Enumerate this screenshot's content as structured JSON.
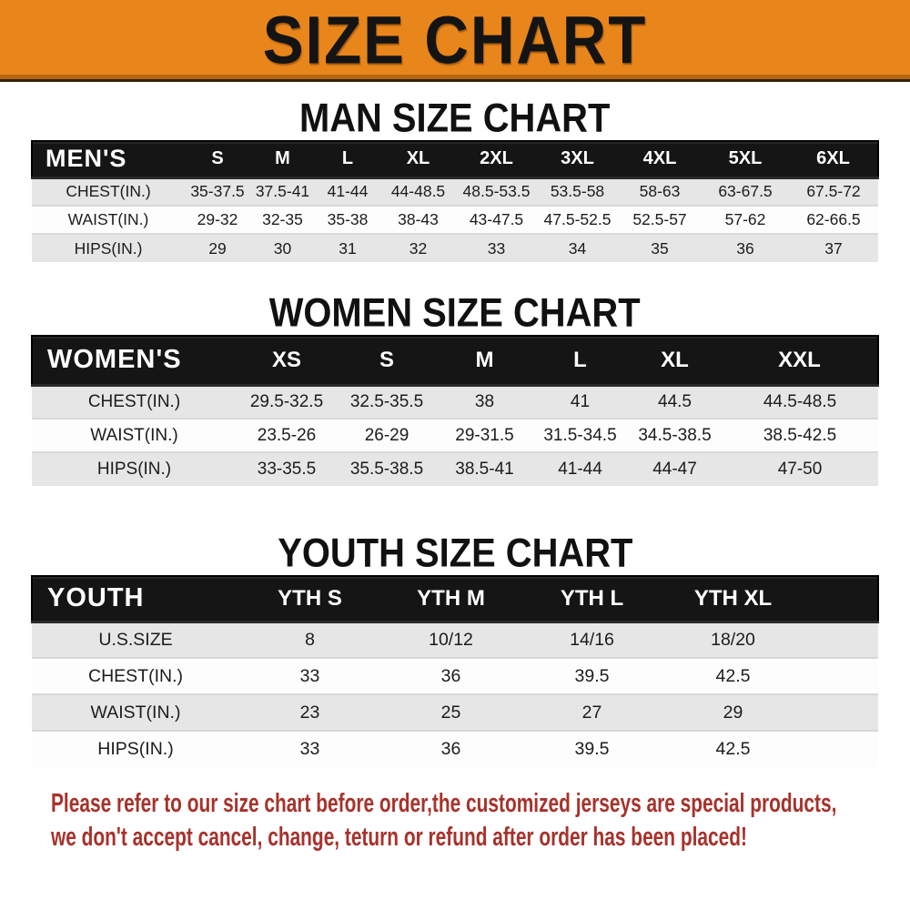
{
  "banner": {
    "title": "SIZE CHART"
  },
  "colors": {
    "banner_orange": "#E8861B",
    "banner_edge": "#33230E",
    "band_black": "#151515",
    "row_shade": "#E6E6E6",
    "row_plain": "#FDFDFD",
    "note_red": "#A7322B",
    "text_dark": "#1C1C1C"
  },
  "sections": {
    "men": {
      "heading": "MAN SIZE CHART"
    },
    "women": {
      "heading": "WOMEN SIZE CHART"
    },
    "youth": {
      "heading": "YOUTH SIZE CHART"
    }
  },
  "tables": {
    "men": {
      "group_label": "MEN'S",
      "columns": [
        "S",
        "M",
        "L",
        "XL",
        "2XL",
        "3XL",
        "4XL",
        "5XL",
        "6XL"
      ],
      "rows": [
        {
          "label": "CHEST(IN.)",
          "values": [
            "35-37.5",
            "37.5-41",
            "41-44",
            "44-48.5",
            "48.5-53.5",
            "53.5-58",
            "58-63",
            "63-67.5",
            "67.5-72"
          ]
        },
        {
          "label": "WAIST(IN.)",
          "values": [
            "29-32",
            "32-35",
            "35-38",
            "38-43",
            "43-47.5",
            "47.5-52.5",
            "52.5-57",
            "57-62",
            "62-66.5"
          ]
        },
        {
          "label": "HIPS(IN.)",
          "values": [
            "29",
            "30",
            "31",
            "32",
            "33",
            "34",
            "35",
            "36",
            "37"
          ]
        }
      ]
    },
    "women": {
      "group_label": "WOMEN'S",
      "columns": [
        "XS",
        "S",
        "M",
        "L",
        "XL",
        "XXL"
      ],
      "rows": [
        {
          "label": "CHEST(IN.)",
          "values": [
            "29.5-32.5",
            "32.5-35.5",
            "38",
            "41",
            "44.5",
            "44.5-48.5"
          ]
        },
        {
          "label": "WAIST(IN.)",
          "values": [
            "23.5-26",
            "26-29",
            "29-31.5",
            "31.5-34.5",
            "34.5-38.5",
            "38.5-42.5"
          ]
        },
        {
          "label": "HIPS(IN.)",
          "values": [
            "33-35.5",
            "35.5-38.5",
            "38.5-41",
            "41-44",
            "44-47",
            "47-50"
          ]
        }
      ]
    },
    "youth": {
      "group_label": "YOUTH",
      "columns": [
        "YTH S",
        "YTH M",
        "YTH L",
        "YTH XL"
      ],
      "rows": [
        {
          "label": "U.S.SIZE",
          "values": [
            "8",
            "10/12",
            "14/16",
            "18/20"
          ]
        },
        {
          "label": "CHEST(IN.)",
          "values": [
            "33",
            "36",
            "39.5",
            "42.5"
          ]
        },
        {
          "label": "WAIST(IN.)",
          "values": [
            "23",
            "25",
            "27",
            "29"
          ]
        },
        {
          "label": "HIPS(IN.)",
          "values": [
            "33",
            "36",
            "39.5",
            "42.5"
          ]
        }
      ]
    }
  },
  "note": {
    "line1": "Please refer to our size chart before order,the customized jerseys are special products,",
    "line2": "we don't accept cancel, change, teturn or refund after order has been placed!"
  }
}
